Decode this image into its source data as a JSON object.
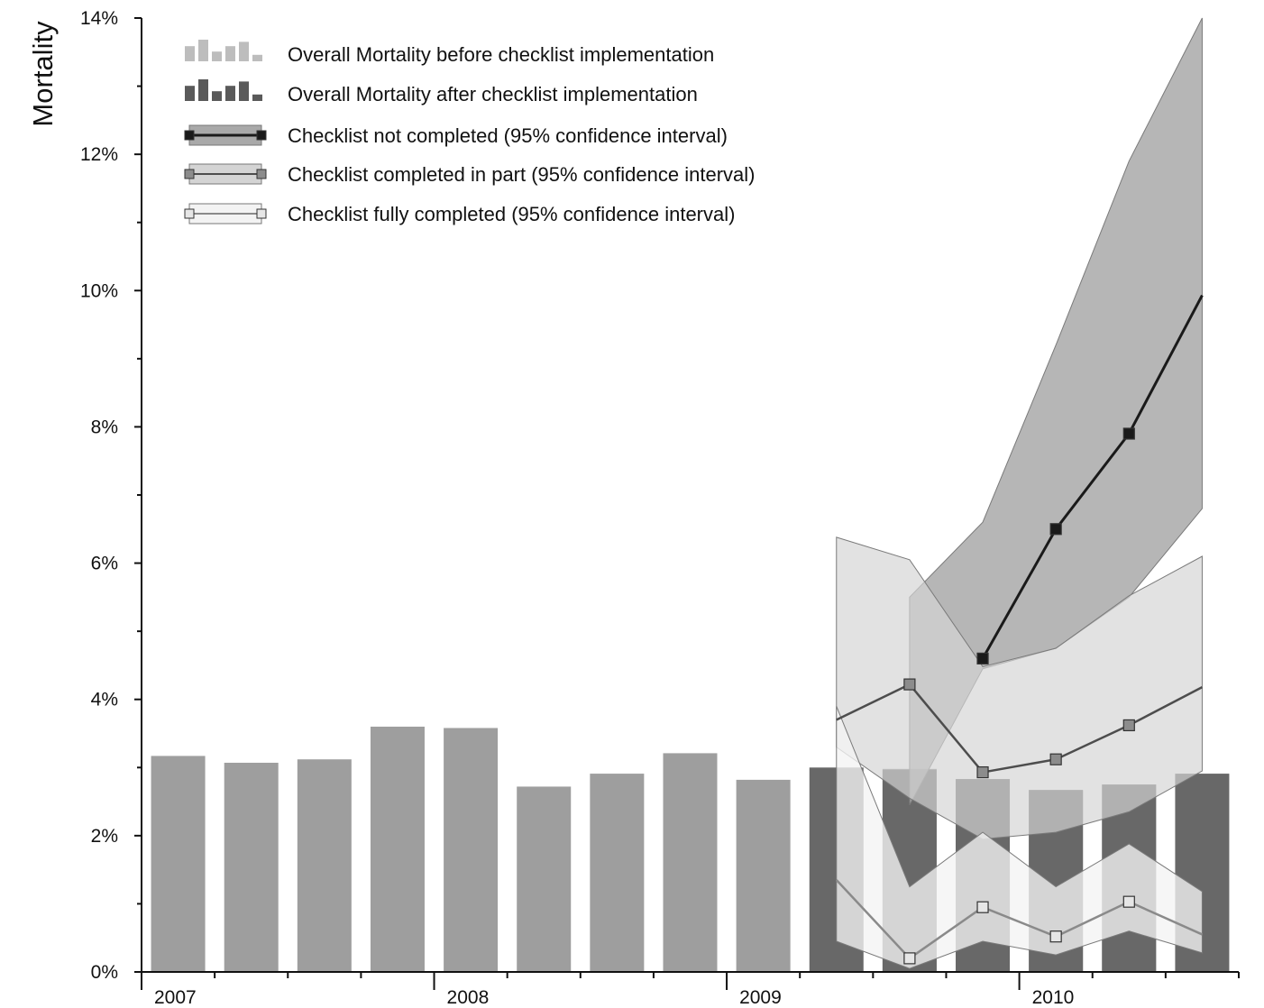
{
  "chart_data": {
    "type": "bar",
    "ylabel": "Mortality",
    "ylim": [
      0,
      14
    ],
    "y_ticks": [
      "0%",
      "2%",
      "4%",
      "6%",
      "8%",
      "10%",
      "12%",
      "14%"
    ],
    "x_year_labels": [
      "2007",
      "2008",
      "2009",
      "2010"
    ],
    "x_range": [
      2007.0,
      2010.75
    ],
    "bars_before": {
      "name": "Overall Mortality before checklist implementation",
      "color": "#9e9e9e",
      "x": [
        2007.125,
        2007.375,
        2007.625,
        2007.875,
        2008.125,
        2008.375,
        2008.625,
        2008.875,
        2009.125,
        2009.625,
        2009.875,
        2010.125,
        2010.375
      ],
      "values": [
        3.17,
        3.07,
        3.12,
        3.6,
        3.58,
        2.72,
        2.91,
        3.21,
        2.82,
        2.98,
        2.83,
        2.67,
        2.75
      ]
    },
    "bars_after": {
      "name": "Overall Mortality after checklist implementation",
      "color": "#686868",
      "x": [
        2009.375,
        2009.625,
        2009.875,
        2010.125,
        2010.375,
        2010.625
      ],
      "values": [
        3.0,
        2.97,
        2.83,
        2.67,
        2.75,
        2.91
      ]
    },
    "lines": [
      {
        "name": "Checklist not completed (95% confidence interval)",
        "color": "#1a1a1a",
        "band_color": "#a9a9a9",
        "x": [
          2009.875,
          2010.125,
          2010.375,
          2010.625
        ],
        "values": [
          4.6,
          6.5,
          7.9,
          9.93
        ],
        "markers": [
          true,
          true,
          true,
          false
        ],
        "ci_x": [
          2009.625,
          2009.875,
          2010.125,
          2010.375,
          2010.625
        ],
        "ci_upper": [
          5.5,
          6.6,
          9.2,
          11.9,
          14.0
        ],
        "ci_lower": [
          2.45,
          4.45,
          4.75,
          5.5,
          6.8
        ]
      },
      {
        "name": "Checklist completed in part (95% confidence interval)",
        "color": "#4d4d4d",
        "band_color": "#d4d4d4",
        "x": [
          2009.375,
          2009.625,
          2009.875,
          2010.125,
          2010.375,
          2010.625
        ],
        "values": [
          3.7,
          4.22,
          2.93,
          3.12,
          3.62,
          4.18
        ],
        "markers": [
          false,
          true,
          true,
          true,
          true,
          false
        ],
        "ci_x": [
          2009.375,
          2009.625,
          2009.875,
          2010.125,
          2010.375,
          2010.625
        ],
        "ci_upper": [
          6.38,
          6.05,
          4.48,
          4.75,
          5.52,
          6.1
        ],
        "ci_lower": [
          3.3,
          2.55,
          1.95,
          2.05,
          2.35,
          2.95
        ]
      },
      {
        "name": "Checklist fully completed (95% confidence interval)",
        "color": "#8a8a8a",
        "band_color": "#f3f3f3",
        "x": [
          2009.375,
          2009.625,
          2009.875,
          2010.125,
          2010.375,
          2010.625
        ],
        "values": [
          1.35,
          0.2,
          0.95,
          0.52,
          1.03,
          0.55
        ],
        "markers": [
          false,
          true,
          true,
          true,
          true,
          false
        ],
        "ci_x": [
          2009.375,
          2009.625,
          2009.875,
          2010.125,
          2010.375,
          2010.625
        ],
        "ci_upper": [
          3.9,
          1.25,
          2.05,
          1.25,
          1.88,
          1.18
        ],
        "ci_lower": [
          0.45,
          0.05,
          0.45,
          0.25,
          0.6,
          0.28
        ]
      }
    ],
    "grid": false,
    "legend": "top-left"
  }
}
